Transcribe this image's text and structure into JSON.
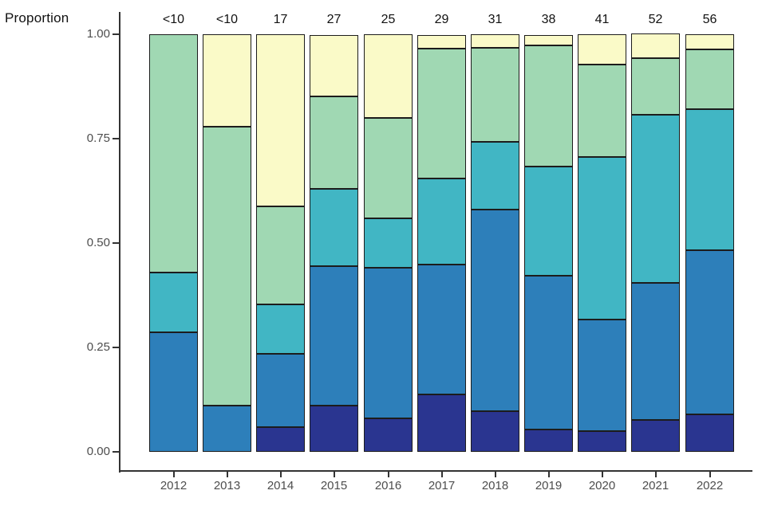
{
  "chart": {
    "y_axis_title": "Proportion"
  },
  "chart_data": {
    "type": "bar",
    "subtype": "stacked-proportion",
    "title": "",
    "xlabel": "",
    "ylabel": "Proportion",
    "ylim": [
      0,
      1
    ],
    "grid": false,
    "legend_position": "none",
    "categories": [
      "2012",
      "2013",
      "2014",
      "2015",
      "2016",
      "2017",
      "2018",
      "2019",
      "2020",
      "2021",
      "2022"
    ],
    "bar_top_labels": [
      "<10",
      "<10",
      "17",
      "27",
      "25",
      "29",
      "31",
      "38",
      "41",
      "52",
      "56"
    ],
    "y_ticks": [
      0,
      0.25,
      0.5,
      0.75,
      1.0
    ],
    "y_tick_labels": [
      "0.00",
      "0.25",
      "0.50",
      "0.75",
      "1.00"
    ],
    "series": [
      {
        "name": "segment-dark-navy-bottom",
        "color": "#2a3590",
        "values": [
          0,
          0,
          0.059,
          0.111,
          0.08,
          0.138,
          0.097,
          0.053,
          0.049,
          0.077,
          0.089
        ]
      },
      {
        "name": "segment-blue",
        "color": "#2d7fba",
        "values": [
          0.286,
          0.111,
          0.176,
          0.333,
          0.36,
          0.31,
          0.484,
          0.368,
          0.268,
          0.327,
          0.393
        ]
      },
      {
        "name": "segment-teal",
        "color": "#41b6c4",
        "values": [
          0.143,
          0,
          0.118,
          0.185,
          0.12,
          0.207,
          0.161,
          0.263,
          0.39,
          0.404,
          0.339
        ]
      },
      {
        "name": "segment-green",
        "color": "#a0d8b3",
        "values": [
          0.571,
          0.667,
          0.235,
          0.222,
          0.24,
          0.31,
          0.226,
          0.289,
          0.22,
          0.135,
          0.143
        ]
      },
      {
        "name": "segment-pale-yellow-top",
        "color": "#fafac8",
        "values": [
          0,
          0.222,
          0.412,
          0.148,
          0.2,
          0.034,
          0.032,
          0.026,
          0.073,
          0.058,
          0.036
        ]
      }
    ]
  },
  "style_colors": {
    "bar_border": "#1c1c1c",
    "axis_line": "#333333",
    "tick_label": "#4d4d4d",
    "text": "#111111"
  }
}
